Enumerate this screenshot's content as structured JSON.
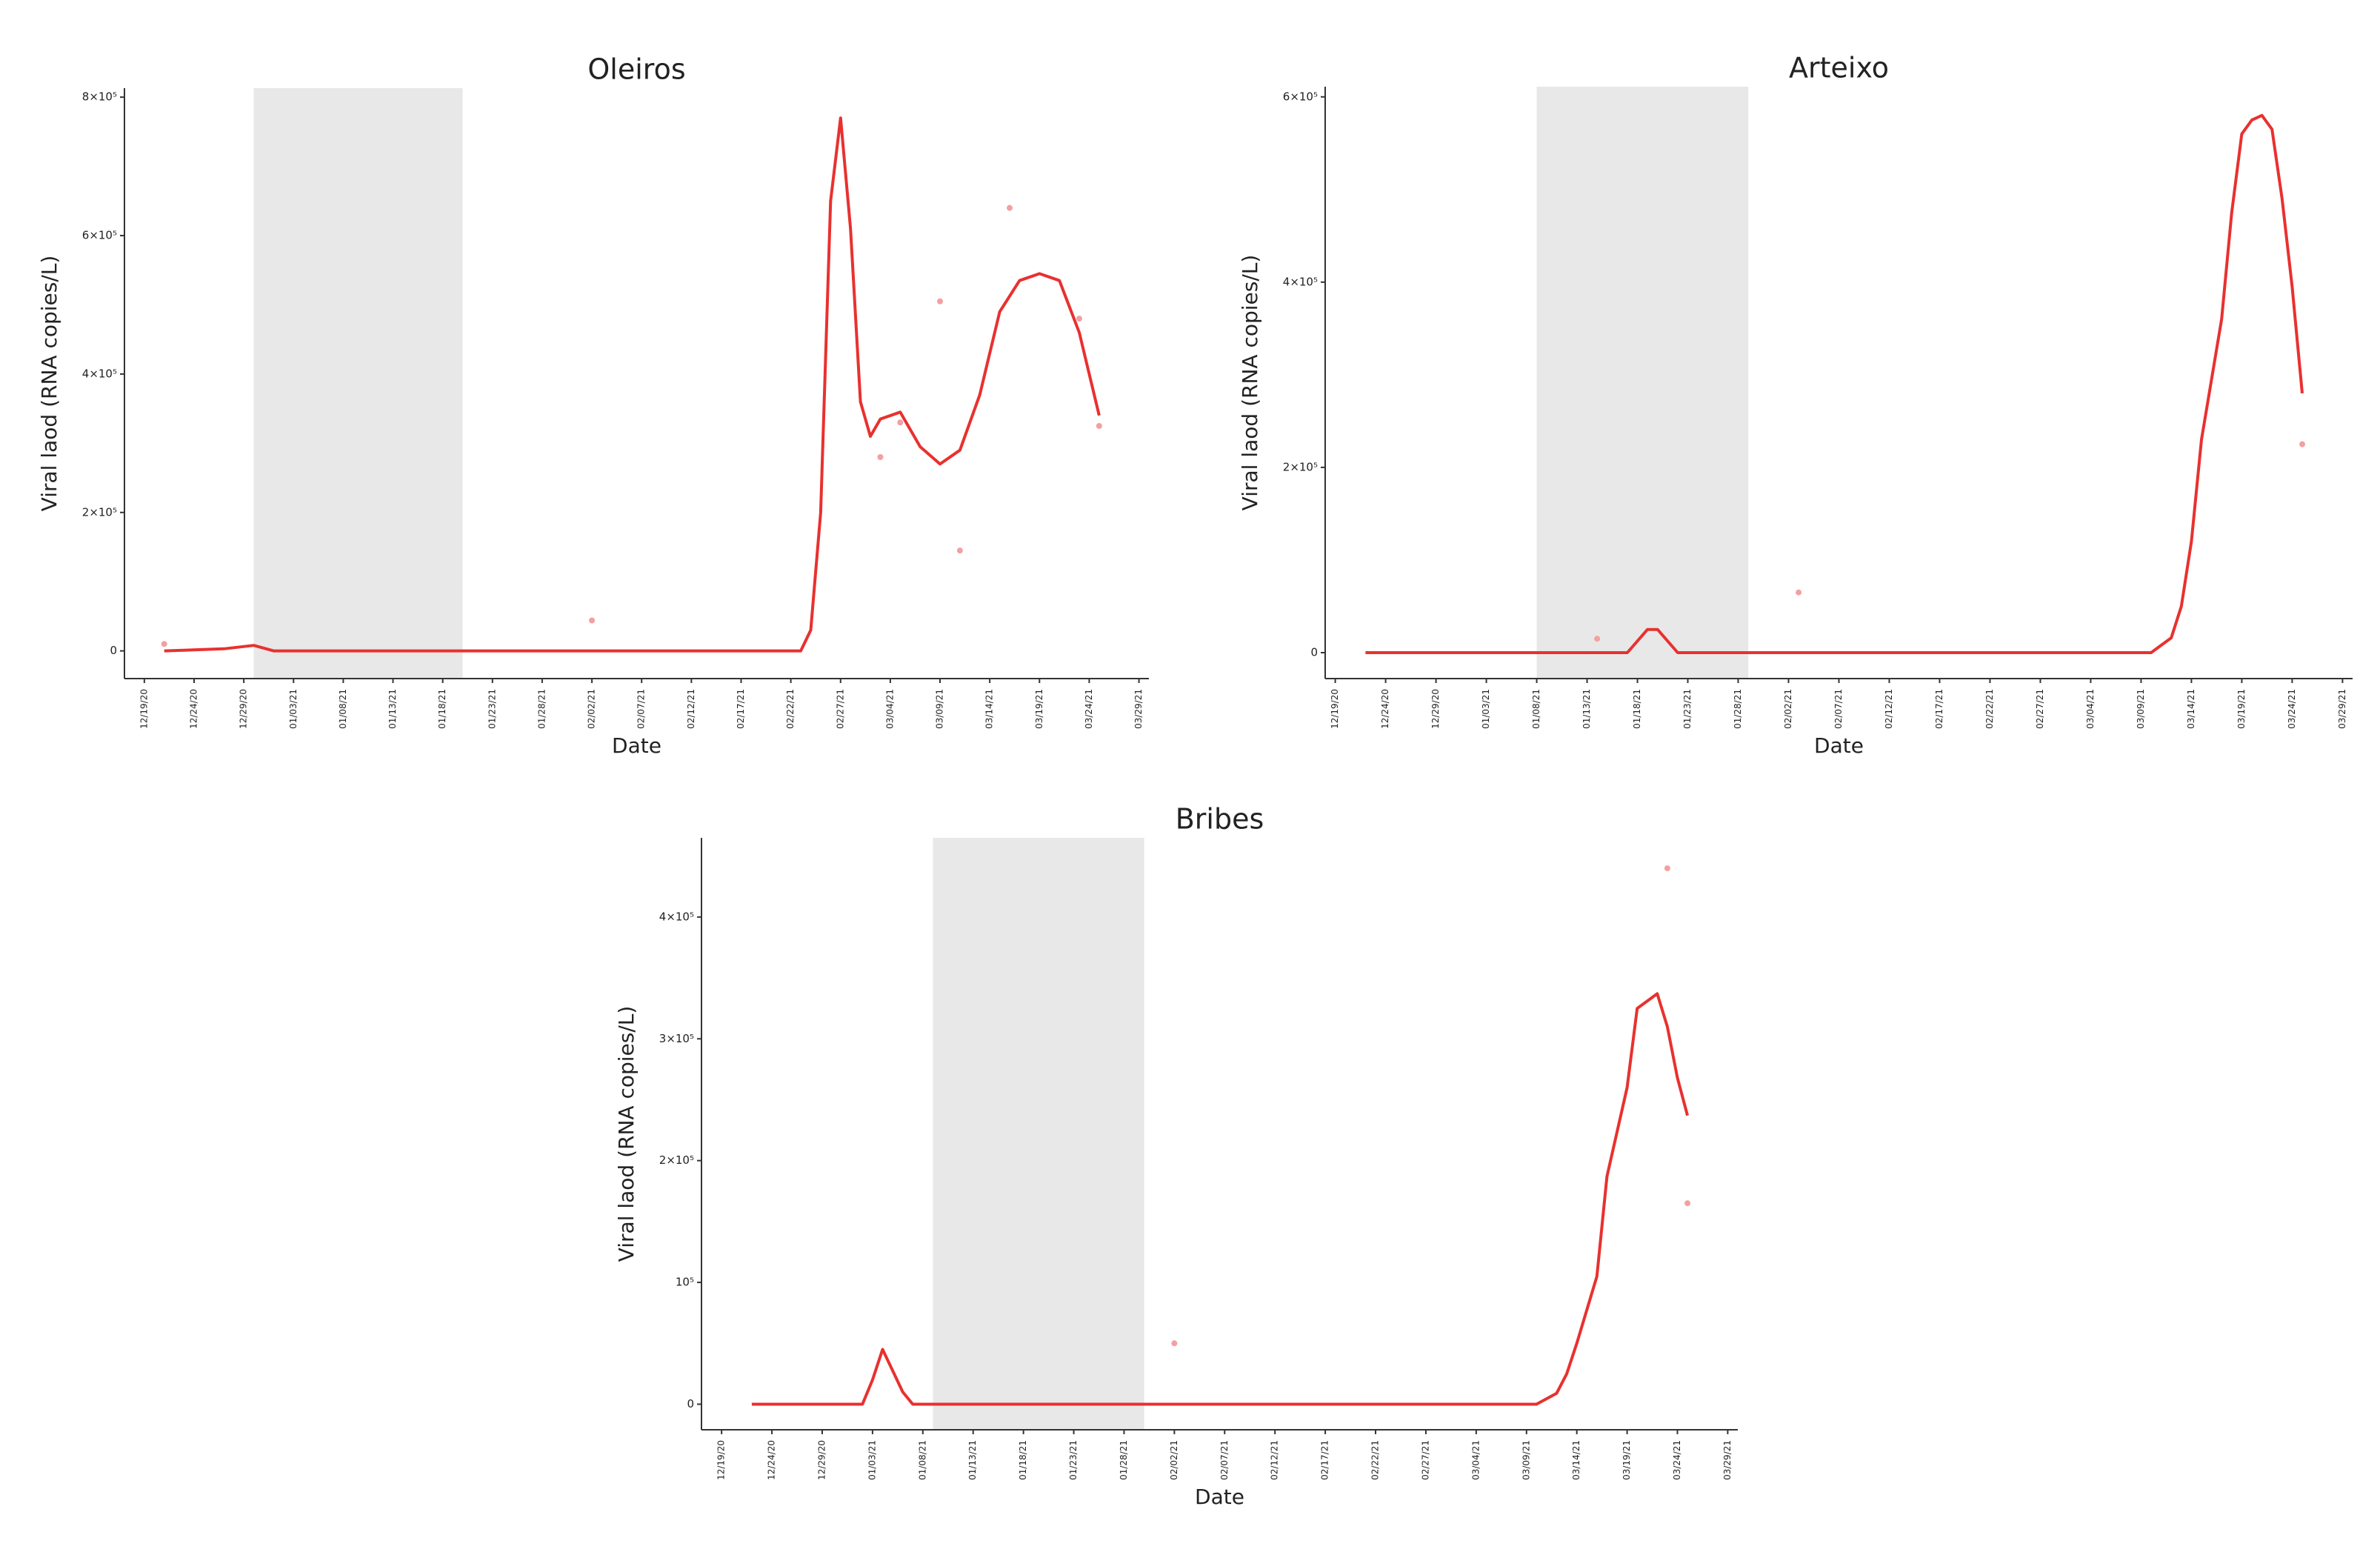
{
  "chart_data": [
    {
      "type": "line",
      "title": "Oleiros",
      "x_label": "Date",
      "y_label": "Viral laod (RNA copies/L)",
      "xlim": [
        "12/17/20",
        "03/30/21"
      ],
      "xticks": [
        "12/19/20",
        "12/24/20",
        "12/29/20",
        "01/03/21",
        "01/08/21",
        "01/13/21",
        "01/18/21",
        "01/23/21",
        "01/28/21",
        "02/02/21",
        "02/07/21",
        "02/12/21",
        "02/17/21",
        "02/22/21",
        "02/27/21",
        "03/04/21",
        "03/09/21",
        "03/14/21",
        "03/19/21",
        "03/24/21",
        "03/29/21"
      ],
      "ylim": [
        -40000,
        813000
      ],
      "yticks": [
        0,
        {
          "value": 200000,
          "label": "2×10⁵"
        },
        {
          "value": 400000,
          "label": "4×10⁵"
        },
        {
          "value": 600000,
          "label": "6×10⁵"
        },
        {
          "value": 800000,
          "label": "8×10⁵"
        }
      ],
      "shade": [
        "12/30/20",
        "01/20/21"
      ],
      "shade_color": "#e8e8e8",
      "series": [
        {
          "style": "line",
          "color": "#e8312f",
          "x": [
            "12/21/20",
            "12/27/20",
            "12/30/20",
            "01/01/21",
            "02/23/21",
            "02/24/21",
            "02/25/21",
            "02/26/21",
            "02/27/21",
            "02/28/21",
            "03/01/21",
            "03/02/21",
            "03/03/21",
            "03/05/21",
            "03/07/21",
            "03/09/21",
            "03/11/21",
            "03/13/21",
            "03/15/21",
            "03/17/21",
            "03/19/21",
            "03/21/21",
            "03/23/21",
            "03/25/21"
          ],
          "values": [
            0,
            3000,
            8000,
            0,
            0,
            30000,
            200000,
            650000,
            770000,
            610000,
            360000,
            310000,
            335000,
            345000,
            295000,
            270000,
            290000,
            370000,
            490000,
            535000,
            545000,
            535000,
            460000,
            340000
          ]
        },
        {
          "style": "points",
          "color": "#f3a0a0",
          "x": [
            "12/21/20",
            "02/02/21",
            "03/03/21",
            "03/05/21",
            "03/09/21",
            "03/11/21",
            "03/16/21",
            "03/23/21",
            "03/25/21"
          ],
          "values": [
            10000,
            44000,
            280000,
            330000,
            505000,
            145000,
            640000,
            480000,
            325000
          ]
        }
      ]
    },
    {
      "type": "line",
      "title": "Arteixo",
      "x_label": "Date",
      "y_label": "Viral laod (RNA copies/L)",
      "xlim": [
        "12/18/20",
        "03/30/21"
      ],
      "xticks": [
        "12/19/20",
        "12/24/20",
        "12/29/20",
        "01/03/21",
        "01/08/21",
        "01/13/21",
        "01/18/21",
        "01/23/21",
        "01/28/21",
        "02/02/21",
        "02/07/21",
        "02/12/21",
        "02/17/21",
        "02/22/21",
        "02/27/21",
        "03/04/21",
        "03/09/21",
        "03/14/21",
        "03/19/21",
        "03/24/21",
        "03/29/21"
      ],
      "ylim": [
        -28000,
        611000
      ],
      "yticks": [
        0,
        {
          "value": 200000,
          "label": "2×10⁵"
        },
        {
          "value": 400000,
          "label": "4×10⁵"
        },
        {
          "value": 600000,
          "label": "6×10⁵"
        }
      ],
      "shade": [
        "01/08/21",
        "01/29/21"
      ],
      "shade_color": "#e8e8e8",
      "series": [
        {
          "style": "line",
          "color": "#e8312f",
          "x": [
            "12/22/20",
            "01/17/21",
            "01/19/21",
            "01/20/21",
            "01/22/21",
            "03/10/21",
            "03/12/21",
            "03/13/21",
            "03/14/21",
            "03/15/21",
            "03/17/21",
            "03/18/21",
            "03/19/21",
            "03/20/21",
            "03/21/21",
            "03/22/21",
            "03/23/21",
            "03/24/21",
            "03/25/21"
          ],
          "values": [
            0,
            0,
            25000,
            25000,
            0,
            0,
            16000,
            50000,
            120000,
            230000,
            360000,
            475000,
            560000,
            575000,
            580000,
            565000,
            490000,
            395000,
            280000
          ]
        },
        {
          "style": "points",
          "color": "#f3a0a0",
          "x": [
            "01/14/21",
            "02/03/21",
            "03/25/21"
          ],
          "values": [
            15000,
            65000,
            225000
          ]
        }
      ]
    },
    {
      "type": "line",
      "title": "Bribes",
      "x_label": "Date",
      "y_label": "Viral laod (RNA copies/L)",
      "xlim": [
        "12/17/20",
        "03/30/21"
      ],
      "xticks": [
        "12/19/20",
        "12/24/20",
        "12/29/20",
        "01/03/21",
        "01/08/21",
        "01/13/21",
        "01/18/21",
        "01/23/21",
        "01/28/21",
        "02/02/21",
        "02/07/21",
        "02/12/21",
        "02/17/21",
        "02/22/21",
        "02/27/21",
        "03/04/21",
        "03/09/21",
        "03/14/21",
        "03/19/21",
        "03/24/21",
        "03/29/21"
      ],
      "ylim": [
        -21000,
        465000
      ],
      "yticks": [
        0,
        {
          "value": 100000,
          "label": "10⁵"
        },
        {
          "value": 200000,
          "label": "2×10⁵"
        },
        {
          "value": 300000,
          "label": "3×10⁵"
        },
        {
          "value": 400000,
          "label": "4×10⁵"
        }
      ],
      "shade": [
        "01/09/21",
        "01/30/21"
      ],
      "shade_color": "#e8e8e8",
      "series": [
        {
          "style": "line",
          "color": "#e8312f",
          "x": [
            "12/22/20",
            "01/02/21",
            "01/03/21",
            "01/04/21",
            "01/06/21",
            "01/07/21",
            "03/10/21",
            "03/12/21",
            "03/13/21",
            "03/14/21",
            "03/16/21",
            "03/17/21",
            "03/19/21",
            "03/20/21",
            "03/22/21",
            "03/23/21",
            "03/24/21",
            "03/25/21"
          ],
          "values": [
            0,
            0,
            20000,
            45000,
            10000,
            0,
            0,
            9000,
            25000,
            50000,
            105000,
            187000,
            260000,
            325000,
            337000,
            310000,
            268000,
            237000
          ]
        },
        {
          "style": "points",
          "color": "#f3a0a0",
          "x": [
            "02/02/21",
            "03/23/21",
            "03/25/21"
          ],
          "values": [
            50000,
            440000,
            165000
          ]
        }
      ]
    }
  ]
}
